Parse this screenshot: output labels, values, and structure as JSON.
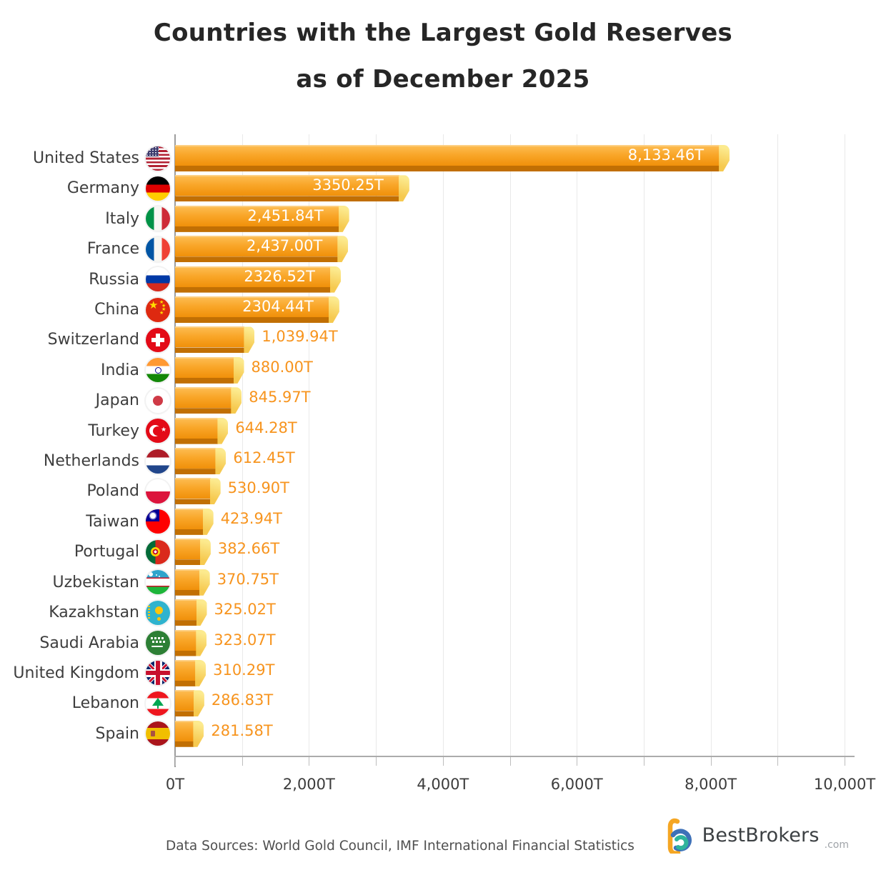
{
  "title": {
    "line1": "Countries with the Largest Gold Reserves",
    "line2": "as of December 2025"
  },
  "chart_data": {
    "type": "bar",
    "orientation": "horizontal",
    "unit": "tonnes",
    "categories": [
      "United States",
      "Germany",
      "Italy",
      "France",
      "Russia",
      "China",
      "Switzerland",
      "India",
      "Japan",
      "Turkey",
      "Netherlands",
      "Poland",
      "Taiwan",
      "Portugal",
      "Uzbekistan",
      "Kazakhstan",
      "Saudi Arabia",
      "United Kingdom",
      "Lebanon",
      "Spain"
    ],
    "values": [
      8133.46,
      3350.25,
      2451.84,
      2437.0,
      2326.52,
      2304.44,
      1039.94,
      880.0,
      845.97,
      644.28,
      612.45,
      530.9,
      423.94,
      382.66,
      370.75,
      325.02,
      323.07,
      310.29,
      286.83,
      281.58
    ],
    "value_labels": [
      "8,133.46T",
      "3350.25T",
      "2,451.84T",
      "2,437.00T",
      "2326.52T",
      "2304.44T",
      "1,039.94T",
      "880.00T",
      "845.97T",
      "644.28T",
      "612.45T",
      "530.90T",
      "423.94T",
      "382.66T",
      "370.75T",
      "325.02T",
      "323.07T",
      "310.29T",
      "286.83T",
      "281.58T"
    ],
    "flags": [
      "us",
      "de",
      "it",
      "fr",
      "ru",
      "cn",
      "ch",
      "in",
      "jp",
      "tr",
      "nl",
      "pl",
      "tw",
      "pt",
      "uz",
      "kz",
      "sa",
      "gb",
      "lb",
      "es"
    ],
    "x_tick_labels": [
      "0T",
      "2,000T",
      "4,000T",
      "6,000T",
      "8,000T",
      "10,000T"
    ],
    "xlim": [
      0,
      10000
    ],
    "gridline_interval": 1000,
    "grid": true,
    "legend": false,
    "colors": {
      "bar_top": "#FDBE55",
      "bar_mid": "#F9A628",
      "bar_bottom": "#F0900A",
      "bar_base_shadow": "#C16F03",
      "bar_facet_light": "#FCEA8E",
      "bar_facet_dark": "#F6C94F",
      "value_inside": "#FFFFFF",
      "value_outside": "#F7941E",
      "label_text": "#3E3E3E",
      "gridline": "#E9E9E9"
    }
  },
  "footer": {
    "source": "Data Sources: World Gold Council, IMF International Financial Statistics",
    "brand": "BestBrokers",
    "brand_suffix": ".com"
  }
}
